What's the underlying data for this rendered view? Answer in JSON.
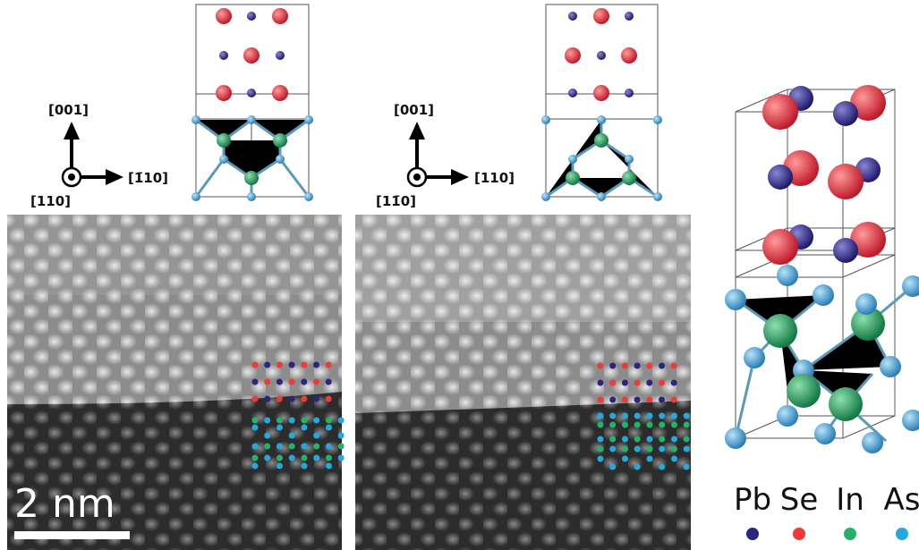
{
  "panels": [
    {
      "axes": {
        "up": "[001]",
        "right": "[1̄10]",
        "view": "[110]"
      }
    },
    {
      "axes": {
        "up": "[001]",
        "right": "[110]",
        "view": "[11̄0]"
      }
    }
  ],
  "scale_bar": "2 nm",
  "legend": [
    {
      "element": "Pb"
    },
    {
      "element": "Se"
    },
    {
      "element": "In"
    },
    {
      "element": "As"
    }
  ]
}
